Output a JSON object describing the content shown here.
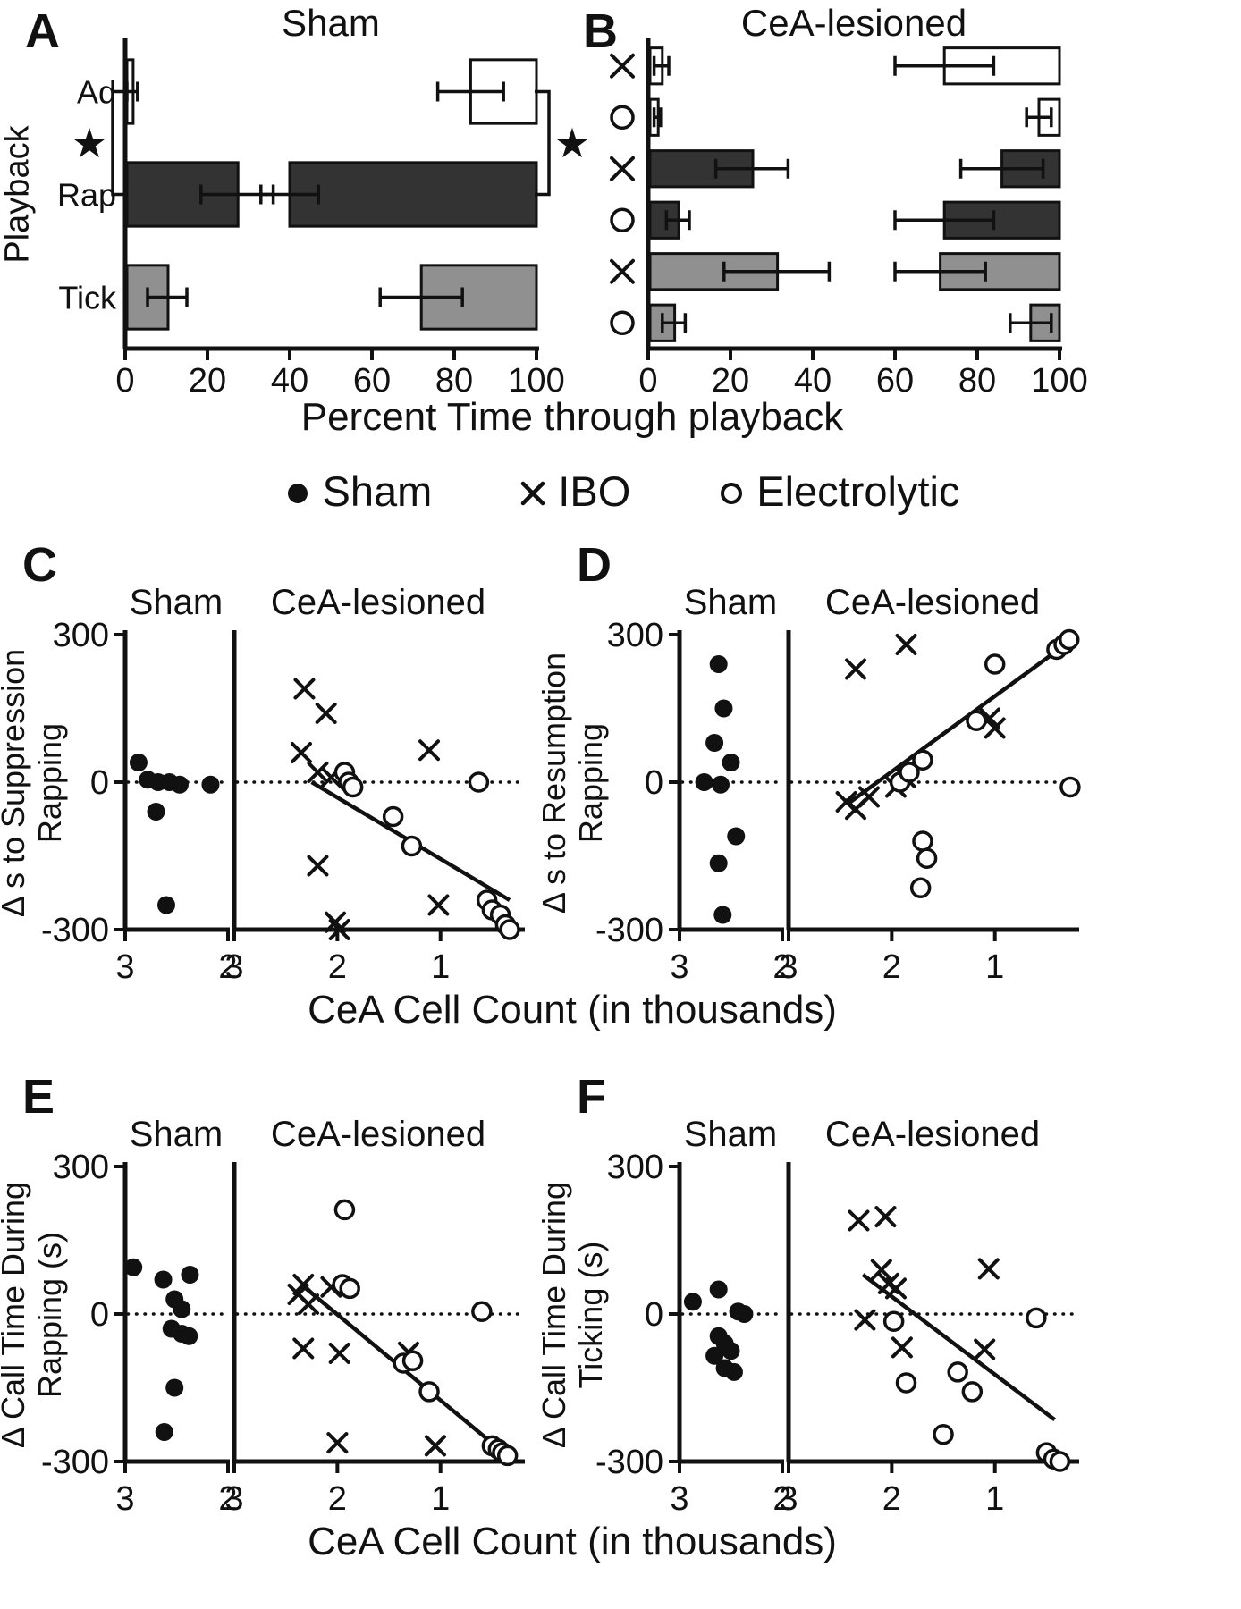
{
  "significance_symbol": "★",
  "legend": {
    "items": [
      {
        "marker": "dot",
        "label": "Sham"
      },
      {
        "marker": "x",
        "label": "IBO"
      },
      {
        "marker": "circle",
        "label": "Electrolytic"
      }
    ]
  },
  "chart_data": [
    {
      "panel": "A",
      "type": "bar",
      "orientation": "horizontal",
      "title": "Sham",
      "ylabel": "Playback",
      "xlabel": "Percent Time through playback",
      "xlim": [
        0,
        100
      ],
      "xticks": [
        0,
        20,
        40,
        60,
        80,
        100
      ],
      "bar_meaning": {
        "left_bars": "percent time through playback at call suppression (anchored at 0)",
        "right_bars": "percent time through playback at call resumption (anchored at 100)"
      },
      "rows": [
        {
          "category": "Ad",
          "fill": "#ffffff",
          "suppression_pct": 1.5,
          "suppression_err": 1.5,
          "resumption_pct": 84,
          "resumption_err": 8
        },
        {
          "category": "Rap",
          "fill": "#333333",
          "suppression_pct": 27,
          "suppression_err": 9,
          "resumption_pct": 40,
          "resumption_err": 7
        },
        {
          "category": "Tick",
          "fill": "#909090",
          "suppression_pct": 10,
          "suppression_err": 5,
          "resumption_pct": 72,
          "resumption_err": 10
        }
      ],
      "significance_stars": [
        "left",
        "right"
      ]
    },
    {
      "panel": "B",
      "type": "bar",
      "orientation": "horizontal",
      "title": "CeA-lesioned",
      "xlim": [
        0,
        100
      ],
      "xticks": [
        0,
        20,
        40,
        60,
        80,
        100
      ],
      "rows": [
        {
          "category": "Ad",
          "lesion": "IBO",
          "marker": "x",
          "fill": "#ffffff",
          "suppression_pct": 3,
          "suppression_err": 2,
          "resumption_pct": 72,
          "resumption_err": 12
        },
        {
          "category": "Ad",
          "lesion": "Electrolytic",
          "marker": "circle",
          "fill": "#ffffff",
          "suppression_pct": 2,
          "suppression_err": 1,
          "resumption_pct": 95,
          "resumption_err": 3
        },
        {
          "category": "Rap",
          "lesion": "IBO",
          "marker": "x",
          "fill": "#333333",
          "suppression_pct": 25,
          "suppression_err": 9,
          "resumption_pct": 86,
          "resumption_err": 10
        },
        {
          "category": "Rap",
          "lesion": "Electrolytic",
          "marker": "circle",
          "fill": "#333333",
          "suppression_pct": 7,
          "suppression_err": 3,
          "resumption_pct": 72,
          "resumption_err": 12
        },
        {
          "category": "Tick",
          "lesion": "IBO",
          "marker": "x",
          "fill": "#909090",
          "suppression_pct": 31,
          "suppression_err": 13,
          "resumption_pct": 71,
          "resumption_err": 11
        },
        {
          "category": "Tick",
          "lesion": "Electrolytic",
          "marker": "circle",
          "fill": "#909090",
          "suppression_pct": 6,
          "suppression_err": 3,
          "resumption_pct": 93,
          "resumption_err": 5
        }
      ]
    },
    {
      "panel": "C",
      "type": "scatter",
      "ylabel_lines": [
        "Δ s to Suppression",
        "Rapping"
      ],
      "xlabel": "CeA Cell Count (in thousands)",
      "ylim": [
        -300,
        300
      ],
      "yticks": [
        300,
        0,
        -300
      ],
      "zero_line": "dotted",
      "subplots": [
        {
          "title": "Sham",
          "xlim": [
            3,
            2
          ],
          "xticks": [
            3,
            2
          ],
          "series": [
            {
              "name": "Sham",
              "marker": "dot",
              "points": [
                [
                  2.87,
                  40
                ],
                [
                  2.78,
                  5
                ],
                [
                  2.68,
                  0
                ],
                [
                  2.57,
                  0
                ],
                [
                  2.47,
                  -5
                ],
                [
                  2.7,
                  -60
                ],
                [
                  2.17,
                  -5
                ],
                [
                  2.6,
                  -250
                ]
              ]
            }
          ]
        },
        {
          "title": "CeA-lesioned",
          "xlim": [
            3,
            0.2
          ],
          "xticks": [
            3,
            2,
            1
          ],
          "series": [
            {
              "name": "IBO",
              "marker": "x",
              "points": [
                [
                  2.32,
                  190
                ],
                [
                  2.11,
                  140
                ],
                [
                  2.35,
                  60
                ],
                [
                  2.19,
                  20
                ],
                [
                  2.06,
                  10
                ],
                [
                  1.11,
                  65
                ],
                [
                  2.19,
                  -170
                ],
                [
                  2.02,
                  -285
                ],
                [
                  1.98,
                  -300
                ],
                [
                  1.02,
                  -250
                ]
              ]
            },
            {
              "name": "Electrolytic",
              "marker": "circle",
              "points": [
                [
                  1.93,
                  20
                ],
                [
                  1.89,
                  0
                ],
                [
                  1.85,
                  -10
                ],
                [
                  1.46,
                  -70
                ],
                [
                  1.28,
                  -130
                ],
                [
                  0.63,
                  0
                ],
                [
                  0.55,
                  -240
                ],
                [
                  0.5,
                  -260
                ],
                [
                  0.42,
                  -270
                ],
                [
                  0.37,
                  -290
                ],
                [
                  0.33,
                  -300
                ]
              ]
            }
          ],
          "fit_line": {
            "x": [
              2.25,
              0.33
            ],
            "y": [
              0,
              -240
            ]
          }
        }
      ]
    },
    {
      "panel": "D",
      "type": "scatter",
      "ylabel_lines": [
        "Δ s to Resumption",
        "Rapping"
      ],
      "xlabel": "CeA Cell Count (in thousands)",
      "ylim": [
        -300,
        300
      ],
      "yticks": [
        300,
        0,
        -300
      ],
      "zero_line": "dotted",
      "subplots": [
        {
          "title": "Sham",
          "xlim": [
            3,
            2
          ],
          "xticks": [
            3,
            2
          ],
          "series": [
            {
              "name": "Sham",
              "marker": "dot",
              "points": [
                [
                  2.62,
                  240
                ],
                [
                  2.57,
                  150
                ],
                [
                  2.66,
                  80
                ],
                [
                  2.5,
                  40
                ],
                [
                  2.76,
                  0
                ],
                [
                  2.6,
                  -5
                ],
                [
                  2.45,
                  -110
                ],
                [
                  2.62,
                  -165
                ],
                [
                  2.58,
                  -270
                ]
              ]
            }
          ]
        },
        {
          "title": "CeA-lesioned",
          "xlim": [
            3,
            0.2
          ],
          "xticks": [
            3,
            2,
            1
          ],
          "series": [
            {
              "name": "IBO",
              "marker": "x",
              "points": [
                [
                  2.35,
                  230
                ],
                [
                  1.86,
                  280
                ],
                [
                  2.44,
                  -40
                ],
                [
                  2.35,
                  -55
                ],
                [
                  2.22,
                  -30
                ],
                [
                  1.96,
                  -10
                ],
                [
                  1.87,
                  10
                ],
                [
                  1.05,
                  130
                ],
                [
                  1.0,
                  110
                ]
              ]
            },
            {
              "name": "Electrolytic",
              "marker": "circle",
              "points": [
                [
                  1.92,
                  0
                ],
                [
                  1.83,
                  20
                ],
                [
                  1.7,
                  45
                ],
                [
                  1.7,
                  -120
                ],
                [
                  1.66,
                  -155
                ],
                [
                  1.72,
                  -215
                ],
                [
                  1.18,
                  125
                ],
                [
                  1.0,
                  240
                ],
                [
                  0.4,
                  270
                ],
                [
                  0.33,
                  280
                ],
                [
                  0.28,
                  290
                ],
                [
                  0.27,
                  -10
                ]
              ]
            }
          ],
          "fit_line": {
            "x": [
              2.4,
              0.25
            ],
            "y": [
              -40,
              290
            ]
          }
        }
      ]
    },
    {
      "panel": "E",
      "type": "scatter",
      "ylabel_lines": [
        "Δ Call Time During",
        "Rapping (s)"
      ],
      "xlabel": "CeA Cell Count (in thousands)",
      "ylim": [
        -300,
        300
      ],
      "yticks": [
        300,
        0,
        -300
      ],
      "zero_line": "dotted",
      "subplots": [
        {
          "title": "Sham",
          "xlim": [
            3,
            2
          ],
          "xticks": [
            3,
            2
          ],
          "series": [
            {
              "name": "Sham",
              "marker": "dot",
              "points": [
                [
                  2.92,
                  95
                ],
                [
                  2.63,
                  70
                ],
                [
                  2.37,
                  80
                ],
                [
                  2.52,
                  30
                ],
                [
                  2.45,
                  10
                ],
                [
                  2.55,
                  -30
                ],
                [
                  2.45,
                  -40
                ],
                [
                  2.38,
                  -45
                ],
                [
                  2.52,
                  -150
                ],
                [
                  2.62,
                  -240
                ]
              ]
            }
          ]
        },
        {
          "title": "CeA-lesioned",
          "xlim": [
            3,
            0.2
          ],
          "xticks": [
            3,
            2,
            1
          ],
          "series": [
            {
              "name": "IBO",
              "marker": "x",
              "points": [
                [
                  2.33,
                  60
                ],
                [
                  2.38,
                  40
                ],
                [
                  2.28,
                  20
                ],
                [
                  2.33,
                  -70
                ],
                [
                  2.06,
                  55
                ],
                [
                  1.98,
                  -80
                ],
                [
                  1.31,
                  -78
                ],
                [
                  2.0,
                  -262
                ],
                [
                  1.05,
                  -268
                ]
              ]
            },
            {
              "name": "Electrolytic",
              "marker": "circle",
              "points": [
                [
                  1.93,
                  212
                ],
                [
                  1.95,
                  60
                ],
                [
                  1.88,
                  52
                ],
                [
                  1.36,
                  -100
                ],
                [
                  1.27,
                  -95
                ],
                [
                  1.11,
                  -158
                ],
                [
                  0.6,
                  5
                ],
                [
                  0.5,
                  -268
                ],
                [
                  0.44,
                  -275
                ],
                [
                  0.4,
                  -282
                ],
                [
                  0.35,
                  -288
                ]
              ]
            }
          ],
          "fit_line": {
            "x": [
              2.35,
              0.4
            ],
            "y": [
              60,
              -280
            ]
          }
        }
      ]
    },
    {
      "panel": "F",
      "type": "scatter",
      "ylabel_lines": [
        "Δ Call Time During",
        "Ticking (s)"
      ],
      "xlabel": "CeA Cell Count (in thousands)",
      "ylim": [
        -300,
        300
      ],
      "yticks": [
        300,
        0,
        -300
      ],
      "zero_line": "dotted",
      "subplots": [
        {
          "title": "Sham",
          "xlim": [
            3,
            2
          ],
          "xticks": [
            3,
            2
          ],
          "series": [
            {
              "name": "Sham",
              "marker": "dot",
              "points": [
                [
                  2.87,
                  25
                ],
                [
                  2.62,
                  50
                ],
                [
                  2.43,
                  5
                ],
                [
                  2.37,
                  0
                ],
                [
                  2.62,
                  -45
                ],
                [
                  2.56,
                  -60
                ],
                [
                  2.5,
                  -75
                ],
                [
                  2.66,
                  -85
                ],
                [
                  2.56,
                  -110
                ],
                [
                  2.47,
                  -118
                ]
              ]
            }
          ]
        },
        {
          "title": "CeA-lesioned",
          "xlim": [
            3,
            0.2
          ],
          "xticks": [
            3,
            2,
            1
          ],
          "series": [
            {
              "name": "IBO",
              "marker": "x",
              "points": [
                [
                  2.32,
                  190
                ],
                [
                  2.06,
                  198
                ],
                [
                  2.1,
                  90
                ],
                [
                  2.03,
                  62
                ],
                [
                  1.96,
                  52
                ],
                [
                  1.06,
                  92
                ],
                [
                  2.26,
                  -12
                ],
                [
                  1.9,
                  -68
                ],
                [
                  1.1,
                  -72
                ]
              ]
            },
            {
              "name": "Electrolytic",
              "marker": "circle",
              "points": [
                [
                  1.98,
                  -15
                ],
                [
                  1.86,
                  -140
                ],
                [
                  1.36,
                  -118
                ],
                [
                  1.22,
                  -158
                ],
                [
                  1.5,
                  -245
                ],
                [
                  0.6,
                  -8
                ],
                [
                  0.5,
                  -282
                ],
                [
                  0.43,
                  -295
                ],
                [
                  0.37,
                  -300
                ]
              ]
            }
          ],
          "fit_line": {
            "x": [
              2.28,
              0.42
            ],
            "y": [
              80,
              -215
            ]
          }
        }
      ]
    }
  ]
}
